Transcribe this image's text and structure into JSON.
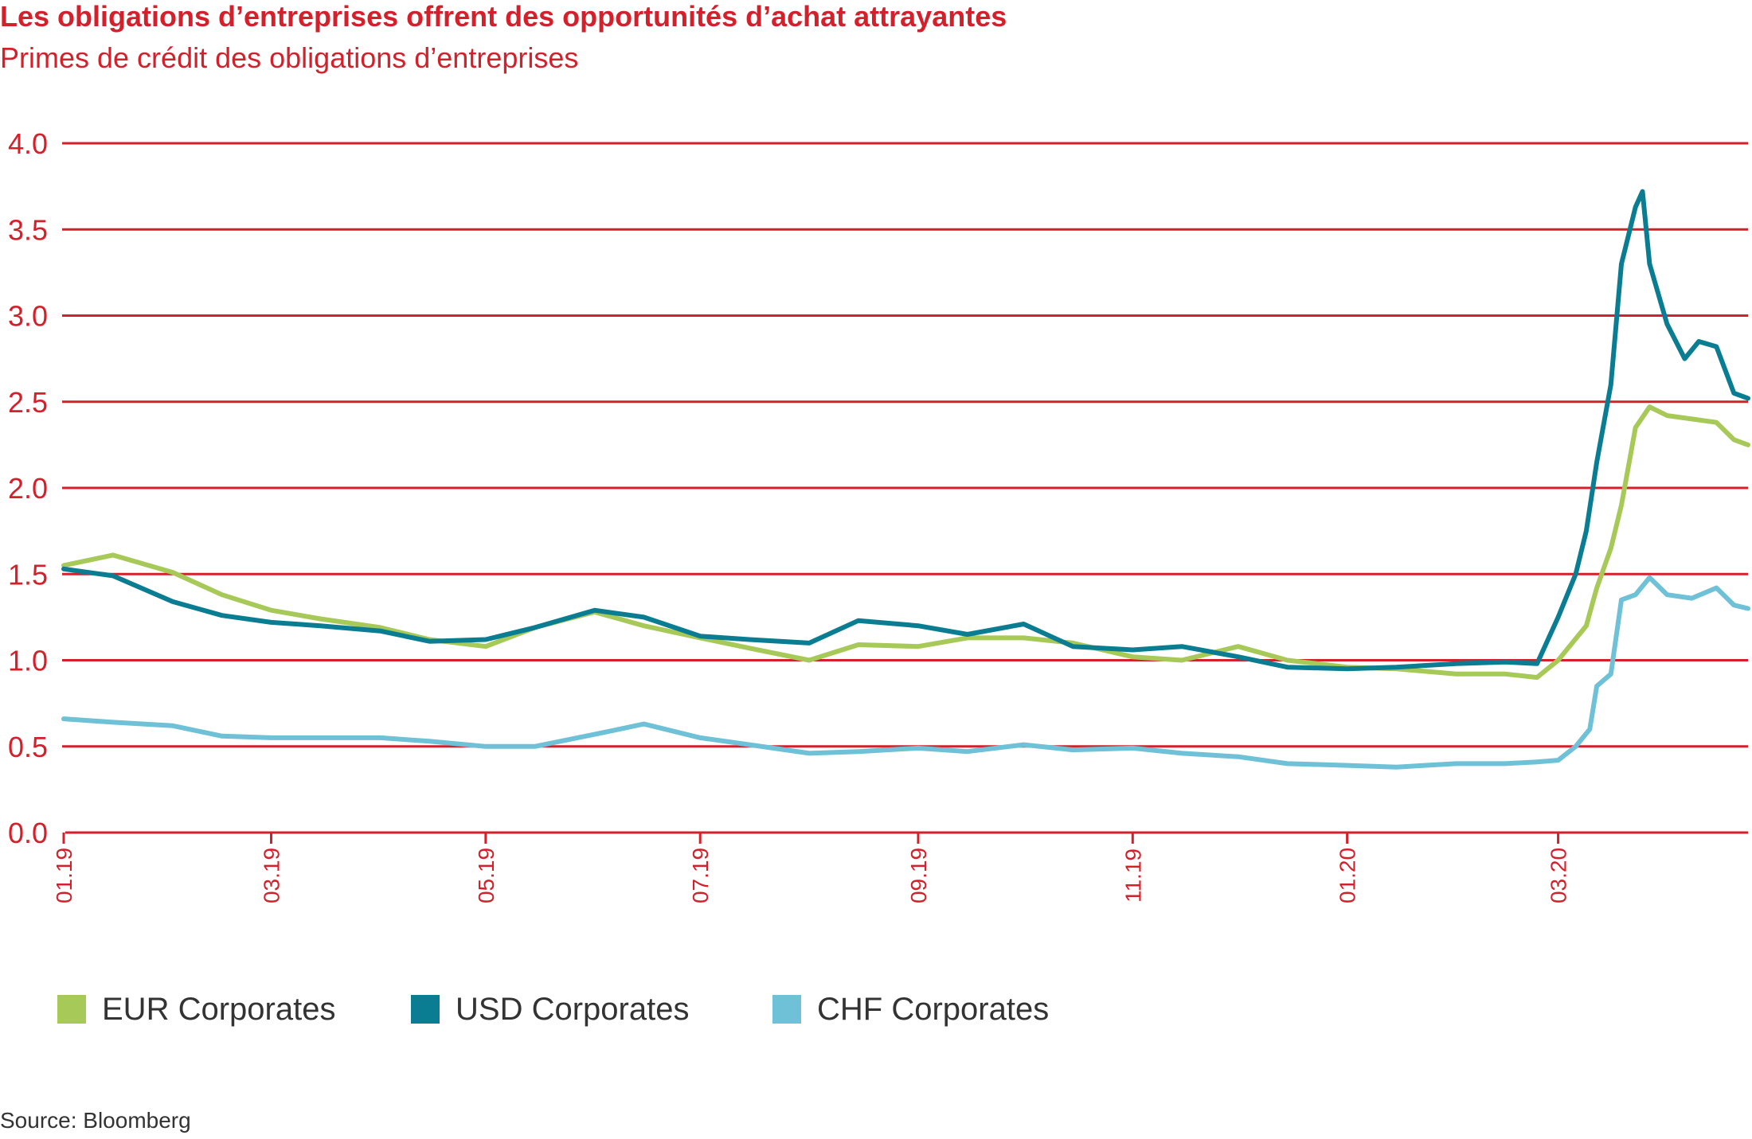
{
  "title": "Les obligations d’entreprises offrent des opportunités d’achat attrayantes",
  "subtitle": "Primes de crédit des obligations d’entreprises",
  "source": "Source: Bloomberg",
  "colors": {
    "accent": "#d4202a",
    "EUR Corporates": "#a7c957",
    "USD Corporates": "#0b7d92",
    "CHF Corporates": "#6ec1d6"
  },
  "chart_data": {
    "type": "line",
    "title": "Les obligations d’entreprises offrent des opportunités d’achat attrayantes",
    "subtitle": "Primes de crédit des obligations d’entreprises",
    "xlabel": "",
    "ylabel": "",
    "ylim": [
      0,
      4
    ],
    "yticks": [
      "0.0",
      "0.5",
      "1.0",
      "1.5",
      "2.0",
      "2.5",
      "3.0",
      "3.5",
      "4.0"
    ],
    "x_tick_labels": [
      "01.19",
      "03.19",
      "05.19",
      "07.19",
      "09.19",
      "11.19",
      "01.20",
      "03.20"
    ],
    "xlim": [
      "2019-01-01",
      "2020-04-24"
    ],
    "grid": "horizontal",
    "legend_position": "bottom",
    "series": [
      {
        "name": "EUR Corporates",
        "x": [
          "2019-01-01",
          "2019-01-15",
          "2019-02-01",
          "2019-02-15",
          "2019-03-01",
          "2019-03-15",
          "2019-04-01",
          "2019-04-15",
          "2019-05-01",
          "2019-05-15",
          "2019-06-01",
          "2019-06-15",
          "2019-07-01",
          "2019-07-15",
          "2019-08-01",
          "2019-08-15",
          "2019-09-01",
          "2019-09-15",
          "2019-10-01",
          "2019-10-15",
          "2019-11-01",
          "2019-11-15",
          "2019-12-01",
          "2019-12-15",
          "2020-01-01",
          "2020-01-15",
          "2020-02-01",
          "2020-02-15",
          "2020-02-24",
          "2020-03-01",
          "2020-03-09",
          "2020-03-12",
          "2020-03-16",
          "2020-03-19",
          "2020-03-23",
          "2020-03-27",
          "2020-04-01",
          "2020-04-08",
          "2020-04-15",
          "2020-04-20",
          "2020-04-24"
        ],
        "values": [
          1.55,
          1.61,
          1.51,
          1.38,
          1.29,
          1.24,
          1.19,
          1.12,
          1.08,
          1.19,
          1.28,
          1.2,
          1.13,
          1.07,
          1.0,
          1.09,
          1.08,
          1.13,
          1.13,
          1.1,
          1.02,
          1.0,
          1.08,
          1.0,
          0.96,
          0.95,
          0.92,
          0.92,
          0.9,
          1.0,
          1.2,
          1.42,
          1.65,
          1.9,
          2.35,
          2.47,
          2.42,
          2.4,
          2.38,
          2.28,
          2.25
        ]
      },
      {
        "name": "USD Corporates",
        "x": [
          "2019-01-01",
          "2019-01-15",
          "2019-02-01",
          "2019-02-15",
          "2019-03-01",
          "2019-03-15",
          "2019-04-01",
          "2019-04-15",
          "2019-05-01",
          "2019-05-15",
          "2019-06-01",
          "2019-06-15",
          "2019-07-01",
          "2019-07-15",
          "2019-08-01",
          "2019-08-15",
          "2019-09-01",
          "2019-09-15",
          "2019-10-01",
          "2019-10-15",
          "2019-11-01",
          "2019-11-15",
          "2019-12-01",
          "2019-12-15",
          "2020-01-01",
          "2020-01-15",
          "2020-02-01",
          "2020-02-15",
          "2020-02-24",
          "2020-03-01",
          "2020-03-06",
          "2020-03-09",
          "2020-03-12",
          "2020-03-16",
          "2020-03-19",
          "2020-03-23",
          "2020-03-25",
          "2020-03-27",
          "2020-04-01",
          "2020-04-06",
          "2020-04-10",
          "2020-04-15",
          "2020-04-20",
          "2020-04-24"
        ],
        "values": [
          1.53,
          1.49,
          1.34,
          1.26,
          1.22,
          1.2,
          1.17,
          1.11,
          1.12,
          1.19,
          1.29,
          1.25,
          1.14,
          1.12,
          1.1,
          1.23,
          1.2,
          1.15,
          1.21,
          1.08,
          1.06,
          1.08,
          1.02,
          0.96,
          0.95,
          0.96,
          0.98,
          0.99,
          0.98,
          1.25,
          1.5,
          1.75,
          2.15,
          2.6,
          3.3,
          3.63,
          3.72,
          3.3,
          2.95,
          2.75,
          2.85,
          2.82,
          2.55,
          2.52
        ]
      },
      {
        "name": "CHF Corporates",
        "x": [
          "2019-01-01",
          "2019-01-15",
          "2019-02-01",
          "2019-02-15",
          "2019-03-01",
          "2019-03-15",
          "2019-04-01",
          "2019-04-15",
          "2019-05-01",
          "2019-05-15",
          "2019-06-01",
          "2019-06-15",
          "2019-07-01",
          "2019-07-15",
          "2019-08-01",
          "2019-08-15",
          "2019-09-01",
          "2019-09-15",
          "2019-10-01",
          "2019-10-15",
          "2019-11-01",
          "2019-11-15",
          "2019-12-01",
          "2019-12-15",
          "2020-01-01",
          "2020-01-15",
          "2020-02-01",
          "2020-02-15",
          "2020-02-24",
          "2020-03-01",
          "2020-03-06",
          "2020-03-10",
          "2020-03-12",
          "2020-03-16",
          "2020-03-19",
          "2020-03-23",
          "2020-03-27",
          "2020-04-01",
          "2020-04-08",
          "2020-04-15",
          "2020-04-20",
          "2020-04-24"
        ],
        "values": [
          0.66,
          0.64,
          0.62,
          0.56,
          0.55,
          0.55,
          0.55,
          0.53,
          0.5,
          0.5,
          0.57,
          0.63,
          0.55,
          0.51,
          0.46,
          0.47,
          0.49,
          0.47,
          0.51,
          0.48,
          0.49,
          0.46,
          0.44,
          0.4,
          0.39,
          0.38,
          0.4,
          0.4,
          0.41,
          0.42,
          0.5,
          0.6,
          0.85,
          0.92,
          1.35,
          1.38,
          1.48,
          1.38,
          1.36,
          1.42,
          1.32,
          1.3
        ]
      }
    ]
  }
}
